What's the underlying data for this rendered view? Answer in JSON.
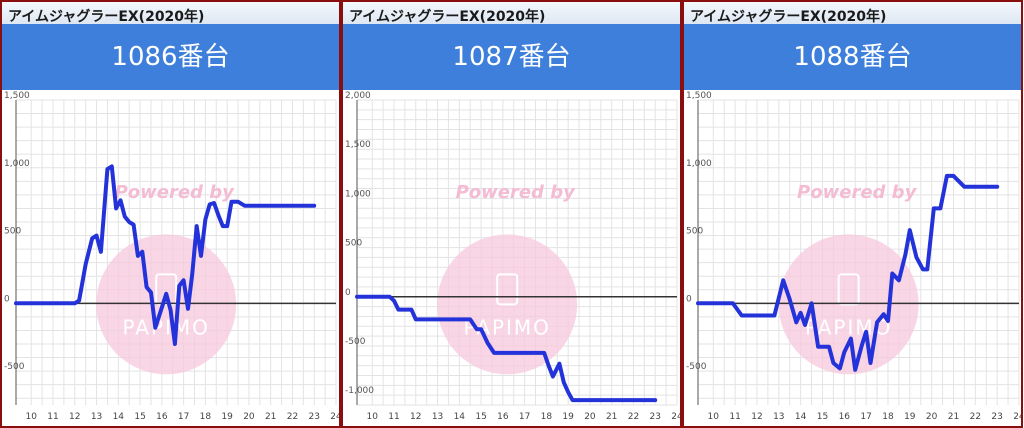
{
  "panels": [
    {
      "title": "アイムジャグラーEX(2020年)",
      "machine": "1086番台",
      "watermark": "Powered by",
      "watermark_logo": "PAPIMO",
      "chart_data": {
        "type": "line",
        "xlabel": "",
        "ylabel": "",
        "xlim": [
          9.3,
          24
        ],
        "ylim": [
          -750,
          1500
        ],
        "xticks": [
          10,
          11,
          12,
          13,
          14,
          15,
          16,
          17,
          18,
          19,
          20,
          21,
          22,
          23,
          24
        ],
        "yticks": [
          -500,
          0,
          500,
          1000,
          1500
        ],
        "ytick_labels": [
          "-500",
          "0",
          "500",
          "1,000",
          "1,500"
        ],
        "grid": true,
        "series": [
          {
            "color": "#2332d9",
            "x": [
              9.3,
              12.0,
              12.2,
              12.5,
              12.8,
              13.0,
              13.2,
              13.5,
              13.7,
              13.9,
              14.1,
              14.3,
              14.5,
              14.7,
              14.9,
              15.1,
              15.3,
              15.5,
              15.7,
              16.0,
              16.2,
              16.4,
              16.6,
              16.8,
              17.0,
              17.2,
              17.4,
              17.6,
              17.8,
              18.0,
              18.2,
              18.4,
              18.6,
              18.8,
              19.0,
              19.2,
              19.5,
              19.8,
              20.0,
              20.3,
              20.6,
              20.9,
              21.2,
              21.5,
              22.0,
              22.5,
              23.0
            ],
            "y": [
              0,
              0,
              20,
              290,
              480,
              500,
              380,
              990,
              1010,
              700,
              760,
              640,
              600,
              580,
              350,
              380,
              120,
              80,
              -180,
              -30,
              70,
              -50,
              -300,
              130,
              170,
              -40,
              220,
              570,
              350,
              620,
              730,
              740,
              650,
              570,
              570,
              750,
              750,
              720,
              720,
              720,
              720,
              720,
              720,
              720,
              720,
              720,
              720
            ]
          }
        ]
      }
    },
    {
      "title": "アイムジャグラーEX(2020年)",
      "machine": "1087番台",
      "watermark": "Powered by",
      "watermark_logo": "PAPIMO",
      "chart_data": {
        "type": "line",
        "xlabel": "",
        "ylabel": "",
        "xlim": [
          9.3,
          24
        ],
        "ylim": [
          -1100,
          2000
        ],
        "xticks": [
          10,
          11,
          12,
          13,
          14,
          15,
          16,
          17,
          18,
          19,
          20,
          21,
          22,
          23,
          24
        ],
        "yticks": [
          -1000,
          -500,
          0,
          500,
          1000,
          1500,
          2000
        ],
        "ytick_labels": [
          "-1,000",
          "-500",
          "0",
          "500",
          "1,000",
          "1,500",
          "2,000"
        ],
        "grid": true,
        "series": [
          {
            "color": "#2332d9",
            "x": [
              9.3,
              10.8,
              11.0,
              11.2,
              11.6,
              11.8,
              12.0,
              12.5,
              13.0,
              13.5,
              14.0,
              14.5,
              14.8,
              15.0,
              15.3,
              15.6,
              15.8,
              16.0,
              16.5,
              17.0,
              17.5,
              17.9,
              18.1,
              18.3,
              18.6,
              18.8,
              19.0,
              19.2,
              19.5,
              20.0,
              20.5,
              21.0,
              21.5,
              22.0,
              22.5,
              23.0
            ],
            "y": [
              0,
              0,
              -40,
              -130,
              -130,
              -130,
              -230,
              -230,
              -230,
              -230,
              -230,
              -230,
              -330,
              -330,
              -470,
              -570,
              -570,
              -570,
              -570,
              -570,
              -570,
              -570,
              -700,
              -810,
              -680,
              -870,
              -970,
              -1050,
              -1050,
              -1050,
              -1050,
              -1050,
              -1050,
              -1050,
              -1050,
              -1050
            ]
          }
        ]
      }
    },
    {
      "title": "アイムジャグラーEX(2020年)",
      "machine": "1088番台",
      "watermark": "Powered by",
      "watermark_logo": "PAPIMO",
      "chart_data": {
        "type": "line",
        "xlabel": "",
        "ylabel": "",
        "xlim": [
          9.3,
          24
        ],
        "ylim": [
          -750,
          1500
        ],
        "xticks": [
          10,
          11,
          12,
          13,
          14,
          15,
          16,
          17,
          18,
          19,
          20,
          21,
          22,
          23,
          24
        ],
        "yticks": [
          -500,
          0,
          500,
          1000,
          1500
        ],
        "ytick_labels": [
          "-500",
          "0",
          "500",
          "1,000",
          "1,500"
        ],
        "grid": true,
        "series": [
          {
            "color": "#2332d9",
            "x": [
              9.3,
              10.9,
              11.3,
              11.6,
              12.0,
              12.4,
              12.8,
              13.2,
              13.5,
              13.8,
              14.0,
              14.2,
              14.5,
              14.8,
              15.0,
              15.3,
              15.5,
              15.8,
              16.0,
              16.3,
              16.5,
              16.8,
              17.0,
              17.2,
              17.5,
              17.8,
              18.0,
              18.2,
              18.5,
              18.8,
              19.0,
              19.3,
              19.6,
              19.8,
              20.1,
              20.4,
              20.7,
              21.0,
              21.5,
              22.0,
              22.5,
              23.0
            ],
            "y": [
              0,
              0,
              -90,
              -90,
              -90,
              -90,
              -90,
              170,
              30,
              -140,
              -70,
              -160,
              0,
              -320,
              -320,
              -320,
              -440,
              -480,
              -360,
              -260,
              -490,
              -310,
              -210,
              -440,
              -140,
              -80,
              -130,
              220,
              170,
              360,
              540,
              340,
              250,
              250,
              700,
              700,
              940,
              940,
              860,
              860,
              860,
              860
            ]
          }
        ]
      }
    }
  ]
}
